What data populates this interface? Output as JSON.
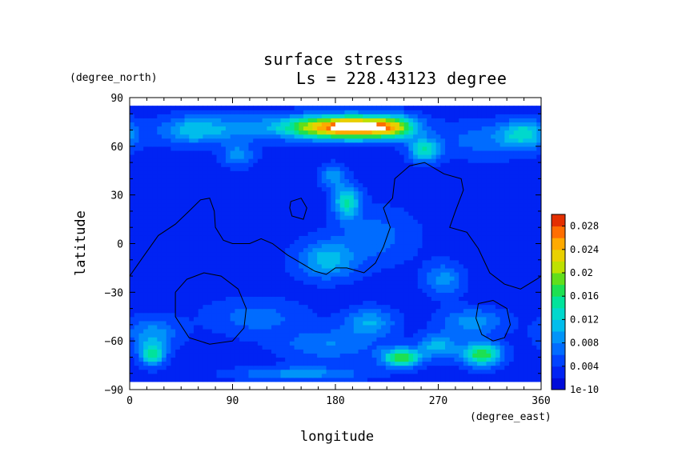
{
  "chart_data": {
    "type": "heatmap",
    "title": "surface stress",
    "subtitle": "Ls = 228.43123 degree",
    "xlabel": "longitude",
    "ylabel": "latitude",
    "xunit": "(degree_east)",
    "yunit": "(degree_north)",
    "xlim": [
      0,
      360
    ],
    "ylim": [
      -90,
      90
    ],
    "xticks": [
      "0",
      "90",
      "180",
      "270",
      "360"
    ],
    "yticks": [
      "90",
      "60",
      "30",
      "0",
      "−30",
      "−60",
      "−90"
    ],
    "xtick_values": [
      0,
      90,
      180,
      270,
      360
    ],
    "ytick_values": [
      90,
      60,
      30,
      0,
      -30,
      -60,
      -90
    ],
    "colorbar": {
      "labels": [
        "0.028",
        "0.024",
        "0.02",
        "0.016",
        "0.012",
        "0.008",
        "0.004",
        "1e-10"
      ],
      "values": [
        0.028,
        0.024,
        0.02,
        0.016,
        0.012,
        0.008,
        0.004,
        0.0
      ],
      "range": [
        0,
        0.03
      ],
      "colormap": "rainbow"
    },
    "field_background": 0.003,
    "data_extent_lat": [
      -85,
      85
    ],
    "blobs": [
      {
        "lon": 195,
        "lat": 72,
        "slon": 28,
        "slat": 5,
        "value": 0.027
      },
      {
        "lon": 232,
        "lat": 72,
        "slon": 14,
        "slat": 5,
        "value": 0.01
      },
      {
        "lon": 150,
        "lat": 72,
        "slon": 20,
        "slat": 5,
        "value": 0.008
      },
      {
        "lon": 55,
        "lat": 70,
        "slon": 20,
        "slat": 6,
        "value": 0.008
      },
      {
        "lon": 100,
        "lat": 72,
        "slon": 25,
        "slat": 6,
        "value": 0.005
      },
      {
        "lon": 345,
        "lat": 68,
        "slon": 14,
        "slat": 6,
        "value": 0.009
      },
      {
        "lon": 258,
        "lat": 58,
        "slon": 9,
        "slat": 5,
        "value": 0.011
      },
      {
        "lon": 310,
        "lat": 64,
        "slon": 30,
        "slat": 8,
        "value": 0.004
      },
      {
        "lon": 95,
        "lat": 55,
        "slon": 10,
        "slat": 5,
        "value": 0.006
      },
      {
        "lon": 178,
        "lat": 42,
        "slon": 8,
        "slat": 5,
        "value": 0.006
      },
      {
        "lon": 190,
        "lat": 26,
        "slon": 8,
        "slat": 7,
        "value": 0.011
      },
      {
        "lon": 172,
        "lat": -10,
        "slon": 18,
        "slat": 8,
        "value": 0.008
      },
      {
        "lon": 215,
        "lat": 5,
        "slon": 25,
        "slat": 12,
        "value": 0.004
      },
      {
        "lon": 275,
        "lat": -22,
        "slon": 12,
        "slat": 7,
        "value": 0.006
      },
      {
        "lon": 20,
        "lat": -55,
        "slon": 16,
        "slat": 7,
        "value": 0.006
      },
      {
        "lon": 110,
        "lat": -45,
        "slon": 30,
        "slat": 8,
        "value": 0.004
      },
      {
        "lon": 210,
        "lat": -48,
        "slon": 15,
        "slat": 6,
        "value": 0.007
      },
      {
        "lon": 300,
        "lat": -48,
        "slon": 20,
        "slat": 6,
        "value": 0.006
      },
      {
        "lon": 175,
        "lat": -62,
        "slon": 30,
        "slat": 7,
        "value": 0.005
      },
      {
        "lon": 20,
        "lat": -68,
        "slon": 8,
        "slat": 5,
        "value": 0.011
      },
      {
        "lon": 238,
        "lat": -70,
        "slon": 12,
        "slat": 4,
        "value": 0.015
      },
      {
        "lon": 308,
        "lat": -68,
        "slon": 12,
        "slat": 5,
        "value": 0.015
      },
      {
        "lon": 270,
        "lat": -63,
        "slon": 12,
        "slat": 5,
        "value": 0.008
      },
      {
        "lon": 150,
        "lat": -80,
        "slon": 40,
        "slat": 3,
        "value": 0.006
      }
    ],
    "contours": [
      [
        [
          0,
          -20
        ],
        [
          12,
          -8
        ],
        [
          25,
          5
        ],
        [
          40,
          12
        ],
        [
          52,
          20
        ],
        [
          62,
          27
        ],
        [
          70,
          28
        ],
        [
          74,
          20
        ],
        [
          75,
          10
        ],
        [
          82,
          2
        ],
        [
          90,
          0
        ],
        [
          105,
          0
        ],
        [
          115,
          3
        ],
        [
          125,
          0
        ],
        [
          138,
          -7
        ],
        [
          150,
          -12
        ],
        [
          162,
          -17
        ],
        [
          172,
          -19
        ],
        [
          180,
          -15
        ],
        [
          190,
          -15
        ],
        [
          205,
          -18
        ],
        [
          215,
          -12
        ],
        [
          222,
          -2
        ],
        [
          228,
          10
        ],
        [
          222,
          22
        ],
        [
          230,
          28
        ],
        [
          232,
          40
        ],
        [
          245,
          48
        ],
        [
          258,
          50
        ],
        [
          275,
          43
        ],
        [
          290,
          40
        ],
        [
          292,
          33
        ],
        [
          285,
          20
        ],
        [
          280,
          10
        ],
        [
          295,
          7
        ],
        [
          305,
          -3
        ],
        [
          315,
          -18
        ],
        [
          328,
          -25
        ],
        [
          342,
          -28
        ],
        [
          356,
          -22
        ],
        [
          360,
          -20
        ]
      ],
      [
        [
          141,
          26
        ],
        [
          150,
          28
        ],
        [
          155,
          22
        ],
        [
          152,
          15
        ],
        [
          142,
          17
        ],
        [
          140,
          22
        ],
        [
          141,
          26
        ]
      ],
      [
        [
          40,
          -30
        ],
        [
          50,
          -22
        ],
        [
          65,
          -18
        ],
        [
          80,
          -20
        ],
        [
          95,
          -28
        ],
        [
          102,
          -40
        ],
        [
          100,
          -52
        ],
        [
          90,
          -60
        ],
        [
          70,
          -62
        ],
        [
          52,
          -58
        ],
        [
          40,
          -45
        ],
        [
          40,
          -30
        ]
      ],
      [
        [
          305,
          -37
        ],
        [
          318,
          -35
        ],
        [
          330,
          -40
        ],
        [
          333,
          -50
        ],
        [
          328,
          -58
        ],
        [
          318,
          -60
        ],
        [
          308,
          -56
        ],
        [
          303,
          -46
        ],
        [
          305,
          -37
        ]
      ]
    ]
  }
}
